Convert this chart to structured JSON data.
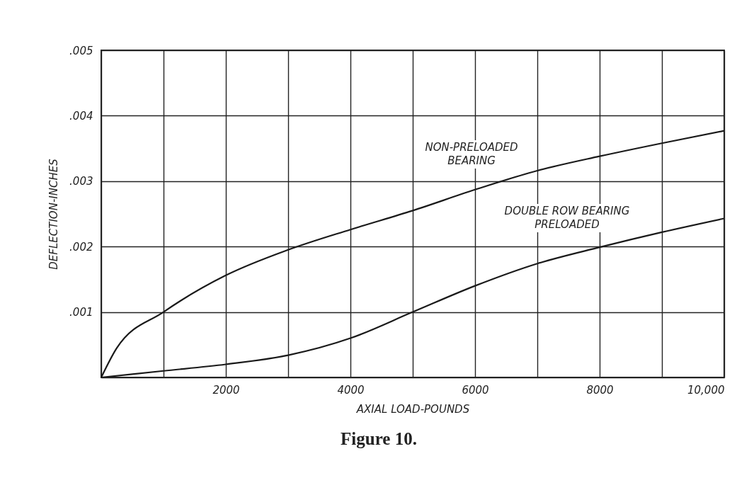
{
  "chart_data": {
    "type": "line",
    "xlabel": "AXIAL LOAD-POUNDS",
    "ylabel": "DEFLECTION-INCHES",
    "x": [
      0,
      1000,
      2000,
      3000,
      4000,
      5000,
      6000,
      7000,
      8000,
      9000,
      10000
    ],
    "series": [
      {
        "color": "#1a1a1a",
        "x": [
          0,
          250,
          1000,
          2000,
          3000,
          4000,
          5000,
          6000,
          7000,
          8000,
          9000,
          10000
        ],
        "values": [
          0,
          0.00045,
          0.001,
          0.00156,
          0.00195,
          0.00226,
          0.00255,
          0.00287,
          0.00316,
          0.00338,
          0.00358,
          0.00377
        ]
      },
      {
        "color": "#1a1a1a",
        "values": [
          0,
          0.0001,
          0.0002,
          0.00034,
          0.0006,
          0.001,
          0.0014,
          0.00174,
          0.00199,
          0.00222,
          0.00243
        ]
      }
    ],
    "xlim": [
      0,
      10000
    ],
    "ylim": [
      0,
      0.005
    ],
    "xticks": [
      {
        "value": 0,
        "label": null
      },
      {
        "value": 1000,
        "label": null
      },
      2000,
      {
        "value": 3000,
        "label": null
      },
      4000,
      {
        "value": 5000,
        "label": null
      },
      6000,
      {
        "value": 7000,
        "label": null
      },
      8000,
      {
        "value": 9000,
        "label": null
      },
      {
        "value": 10000,
        "label": "10,000"
      }
    ],
    "yticks": [
      {
        "value": 0,
        "label": null
      },
      {
        "value": 0.001,
        "label": ".001"
      },
      {
        "value": 0.002,
        "label": ".002"
      },
      {
        "value": 0.003,
        "label": ".003"
      },
      {
        "value": 0.004,
        "label": ".004"
      },
      {
        "value": 0.005,
        "label": ".005"
      }
    ],
    "grid": true,
    "marker": "none",
    "line_style": "solid",
    "annotations": [
      "NON-PRELOADED\nBEARING",
      "DOUBLE ROW BEARING\nPRELOADED",
      "Figure 10."
    ]
  }
}
